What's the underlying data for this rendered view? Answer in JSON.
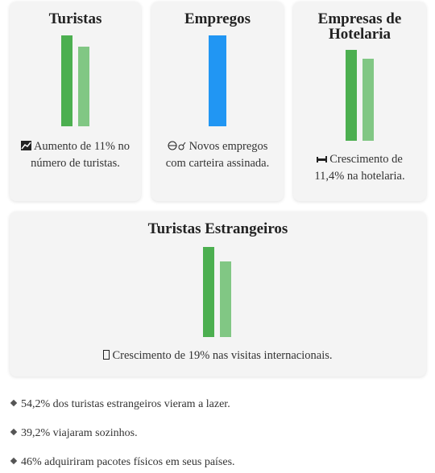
{
  "cards": [
    {
      "title": "Turistas",
      "text": "Aumento de 11% no número de turistas."
    },
    {
      "title": "Empregos",
      "text": "Novos empregos com carteira assinada."
    },
    {
      "title": "Empresas de Hotelaria",
      "text": "Crescimento de 11,4% na hotelaria."
    },
    {
      "title": "Turistas Estrangeiros",
      "text": "Crescimento de 19% nas visitas internacionais."
    }
  ],
  "facts": [
    "54,2% dos turistas estrangeiros vieram a lazer.",
    "39,2% viajaram sozinhos.",
    "46% adquiriram pacotes físicos em seus países."
  ]
}
